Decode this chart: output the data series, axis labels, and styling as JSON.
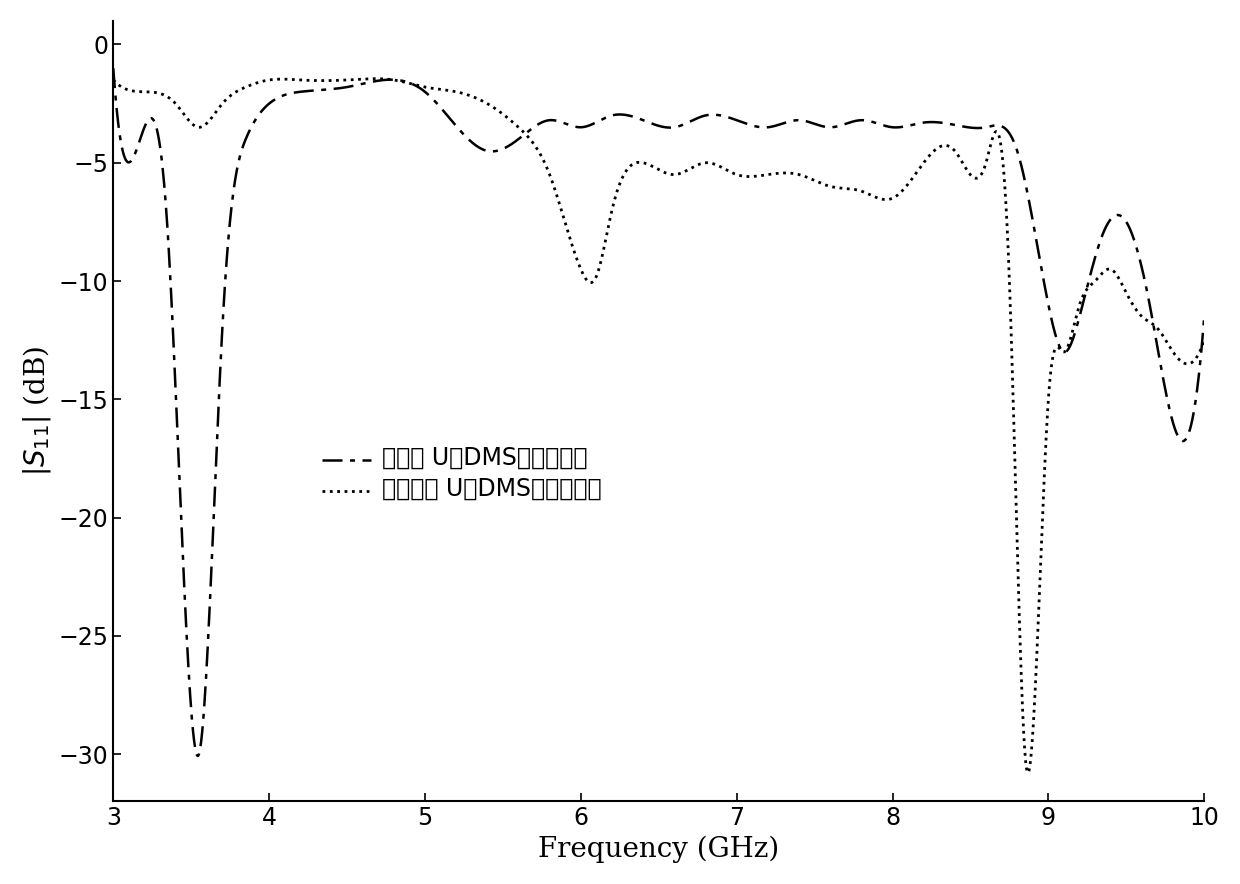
{
  "title": "",
  "xlabel": "Frequency (GHz)",
  "ylabel": "|S_{11}| (dB)",
  "xlim": [
    3,
    10
  ],
  "ylim": [
    -32,
    1
  ],
  "xticks": [
    3,
    4,
    5,
    6,
    7,
    8,
    9,
    10
  ],
  "yticks": [
    0,
    -5,
    -10,
    -15,
    -20,
    -25,
    -30
  ],
  "legend1": "加载长 U型DMS结构的天线",
  "legend2": "未加载长 U型DMS结构的天线",
  "line_color": "#000000",
  "background_color": "#ffffff"
}
